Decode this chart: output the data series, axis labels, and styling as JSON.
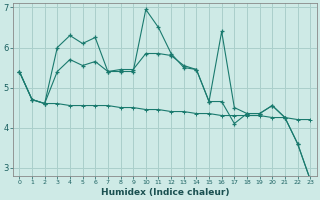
{
  "xlabel": "Humidex (Indice chaleur)",
  "background_color": "#ceeae6",
  "grid_color": "#aacfcb",
  "line_color": "#1a7a6e",
  "x": [
    0,
    1,
    2,
    3,
    4,
    5,
    6,
    7,
    8,
    9,
    10,
    11,
    12,
    13,
    14,
    15,
    16,
    17,
    18,
    19,
    20,
    21,
    22,
    23
  ],
  "line1": [
    5.4,
    4.7,
    4.6,
    6.0,
    6.3,
    6.1,
    6.25,
    5.4,
    5.45,
    5.45,
    5.85,
    5.85,
    5.8,
    5.55,
    5.45,
    4.65,
    4.65,
    4.1,
    4.35,
    4.35,
    4.55,
    4.25,
    3.6,
    2.7
  ],
  "line2": [
    5.4,
    4.7,
    4.6,
    4.6,
    4.55,
    4.55,
    4.55,
    4.55,
    4.5,
    4.5,
    4.45,
    4.45,
    4.4,
    4.4,
    4.35,
    4.35,
    4.3,
    4.3,
    4.3,
    4.3,
    4.25,
    4.25,
    4.2,
    4.2
  ],
  "line3": [
    5.4,
    4.7,
    4.6,
    5.4,
    5.7,
    5.55,
    5.65,
    5.4,
    5.4,
    5.4,
    6.95,
    6.5,
    5.85,
    5.5,
    5.45,
    4.65,
    6.4,
    4.5,
    4.35,
    4.35,
    4.55,
    4.25,
    3.6,
    2.7
  ],
  "ylim": [
    2.8,
    7.1
  ],
  "xlim": [
    -0.5,
    23.5
  ],
  "yticks": [
    3,
    4,
    5,
    6,
    7
  ],
  "xticks": [
    0,
    1,
    2,
    3,
    4,
    5,
    6,
    7,
    8,
    9,
    10,
    11,
    12,
    13,
    14,
    15,
    16,
    17,
    18,
    19,
    20,
    21,
    22,
    23
  ]
}
